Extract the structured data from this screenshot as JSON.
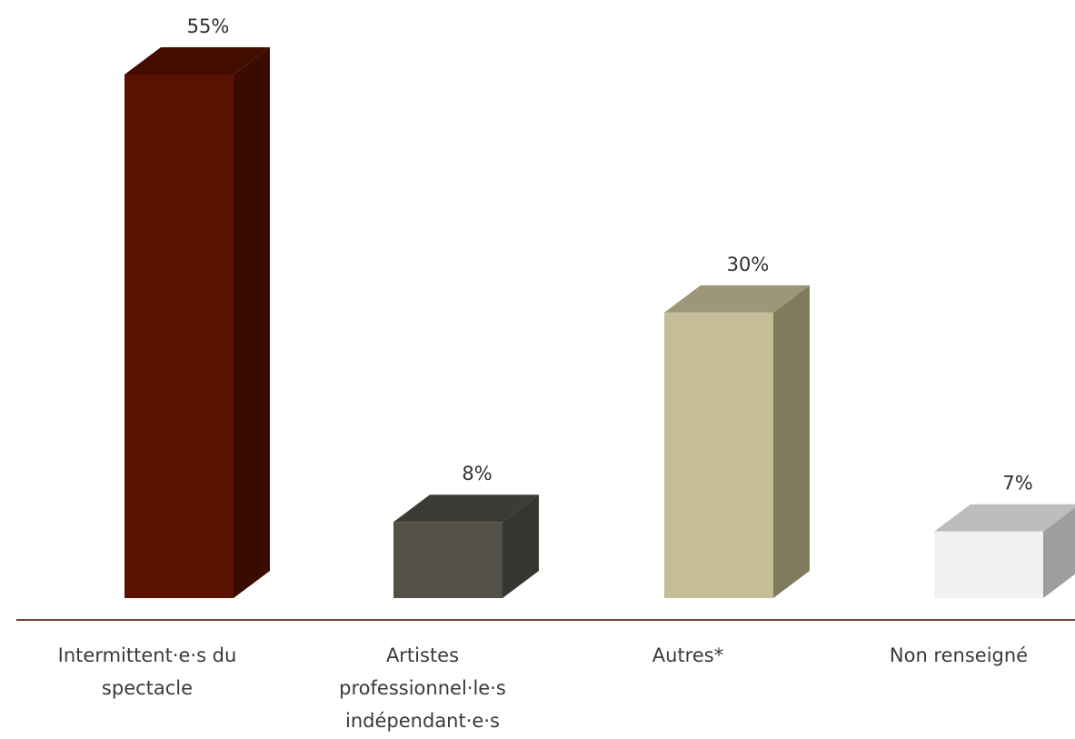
{
  "chart_data": {
    "type": "bar",
    "style": "3d-columns",
    "title": "",
    "xlabel": "",
    "ylabel": "",
    "ylim": [
      0,
      55
    ],
    "grid": false,
    "categories": [
      "Intermittent·e·s du spectacle",
      "Artistes professionnel·le·s indépendant·e·s",
      "Autres*",
      "Non renseigné"
    ],
    "category_lines": [
      [
        "Intermittent·e·s du",
        "spectacle"
      ],
      [
        "Artistes",
        "professionnel·le·s",
        "indépendant·e·s"
      ],
      [
        "Autres*"
      ],
      [
        "Non renseigné"
      ]
    ],
    "values": [
      55,
      8,
      30,
      7
    ],
    "value_labels": [
      "55%",
      "8%",
      "30%",
      "7%"
    ],
    "colors": {
      "front": [
        "#5a1200",
        "#535048",
        "#c6bc98",
        "#f1f1f1"
      ],
      "side": [
        "#3a0b00",
        "#363631",
        "#817b5e",
        "#9e9e9e"
      ],
      "top": [
        "#420c00",
        "#3c3b36",
        "#9e9679",
        "#bdbdbd"
      ],
      "axis": "#6b4738",
      "text": "#2f2f2f"
    }
  }
}
